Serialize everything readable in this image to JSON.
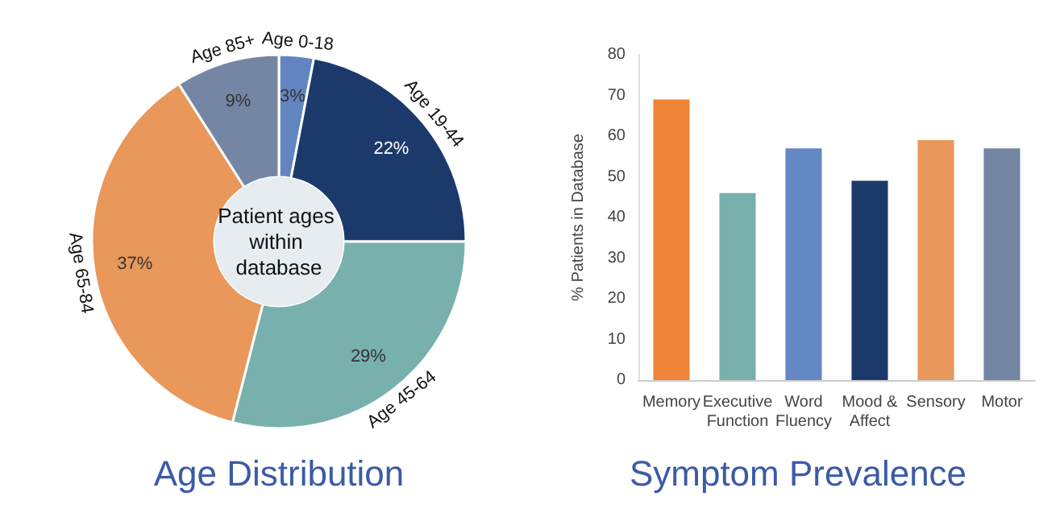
{
  "chart_data": [
    {
      "type": "donut",
      "title": "Age Distribution",
      "annotations": [
        "Patient ages within database"
      ],
      "categories": [
        "Age 0-18",
        "Age 19-44",
        "Age 45-64",
        "Age 65-84",
        "Age 85+"
      ],
      "values": [
        3,
        22,
        29,
        37,
        9
      ],
      "colors": [
        "#6285c2",
        "#1b3a6b",
        "#78b0ad",
        "#e9975a",
        "#7486a3"
      ],
      "value_labels": [
        "3%",
        "22%",
        "29%",
        "37%",
        "9%"
      ],
      "legend": false
    },
    {
      "type": "bar",
      "title": "Symptom Prevalence",
      "ylabel": "% Patients in Database",
      "categories": [
        "Memory",
        "Executive\nFunction",
        "Word\nFluency",
        "Mood &\nAffect",
        "Sensory",
        "Motor"
      ],
      "values": [
        69,
        46,
        57,
        49,
        59,
        57
      ],
      "colors": [
        "#ef8536",
        "#78b0ad",
        "#6488c4",
        "#1b3a6b",
        "#e9975a",
        "#7486a3"
      ],
      "ylim": [
        0,
        80
      ],
      "yticks": [
        0,
        10,
        20,
        30,
        40,
        50,
        60,
        70,
        80
      ],
      "grid": false,
      "legend": false
    }
  ]
}
